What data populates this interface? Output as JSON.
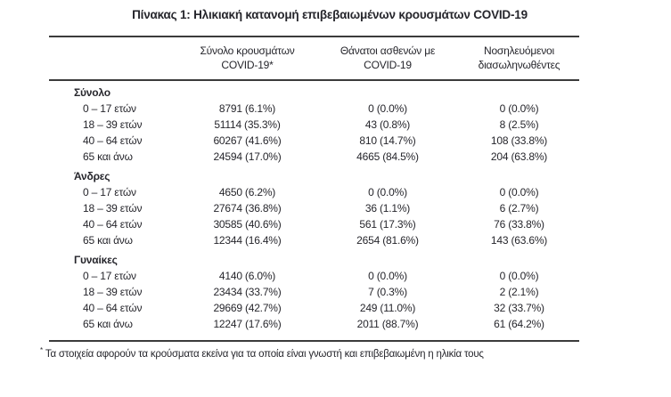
{
  "title": "Πίνακας 1: Ηλικιακή κατανομή επιβεβαιωμένων κρουσμάτων COVID-19",
  "header": {
    "cases": {
      "line1": "Σύνολο κρουσμάτων",
      "line2": "COVID-19*"
    },
    "deaths": {
      "line1": "Θάνατοι ασθενών με",
      "line2": "COVID-19"
    },
    "intubated": {
      "line1": "Νοσηλευόμενοι",
      "line2": "διασωληνωθέντες"
    }
  },
  "sections": [
    {
      "name": "Σύνολο",
      "rows": [
        [
          "0 – 17 ετών",
          "8791 (6.1%)",
          "0 (0.0%)",
          "0 (0.0%)"
        ],
        [
          "18 – 39 ετών",
          "51114 (35.3%)",
          "43 (0.8%)",
          "8 (2.5%)"
        ],
        [
          "40 – 64 ετών",
          "60267 (41.6%)",
          "810 (14.7%)",
          "108 (33.8%)"
        ],
        [
          "65 και άνω",
          "24594 (17.0%)",
          "4665 (84.5%)",
          "204 (63.8%)"
        ]
      ]
    },
    {
      "name": "Άνδρες",
      "rows": [
        [
          "0 – 17 ετών",
          "4650 (6.2%)",
          "0 (0.0%)",
          "0 (0.0%)"
        ],
        [
          "18 – 39 ετών",
          "27674 (36.8%)",
          "36 (1.1%)",
          "6 (2.7%)"
        ],
        [
          "40 – 64 ετών",
          "30585 (40.6%)",
          "561 (17.3%)",
          "76 (33.8%)"
        ],
        [
          "65 και άνω",
          "12344 (16.4%)",
          "2654 (81.6%)",
          "143 (63.6%)"
        ]
      ]
    },
    {
      "name": "Γυναίκες",
      "rows": [
        [
          "0 – 17 ετών",
          "4140 (6.0%)",
          "0 (0.0%)",
          "0 (0.0%)"
        ],
        [
          "18 – 39 ετών",
          "23434 (33.7%)",
          "7 (0.3%)",
          "2 (2.1%)"
        ],
        [
          "40 – 64 ετών",
          "29669 (42.7%)",
          "249 (11.0%)",
          "32 (33.7%)"
        ],
        [
          "65 και άνω",
          "12247 (17.6%)",
          "2011 (88.7%)",
          "61 (64.2%)"
        ]
      ]
    }
  ],
  "footnote": {
    "marker": "*",
    "text": "Τα στοιχεία αφορούν τα κρούσματα εκείνα για τα οποία είναι γνωστή και επιβεβαιωμένη η ηλικία τους"
  },
  "colors": {
    "text": "#26262c",
    "rule": "#3b3b3b",
    "background": "#ffffff"
  }
}
